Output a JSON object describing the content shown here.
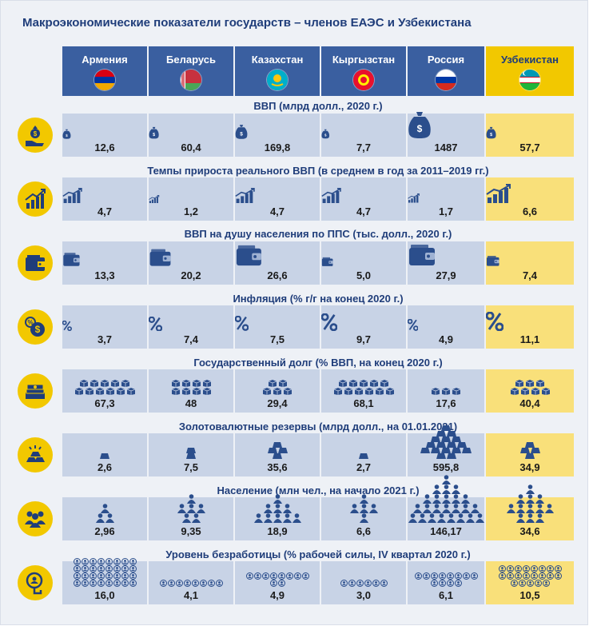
{
  "title": "Макроэкономические показатели государств – членов ЕАЭС и Узбекистана",
  "countries": [
    {
      "name": "Армения",
      "flag": [
        "#d90012",
        "#0033a0",
        "#f2a800"
      ]
    },
    {
      "name": "Беларусь",
      "flag": [
        "#c8313e",
        "#4aa657",
        "#ffffff"
      ]
    },
    {
      "name": "Казахстан",
      "flag": [
        "#00afca",
        "#fec50c"
      ]
    },
    {
      "name": "Кыргызстан",
      "flag": [
        "#e8112d",
        "#ffef00"
      ]
    },
    {
      "name": "Россия",
      "flag": [
        "#ffffff",
        "#0039a6",
        "#d52b1e"
      ]
    },
    {
      "name": "Узбекистан",
      "flag": [
        "#1eb53a",
        "#0099b5",
        "#ffffff"
      ]
    }
  ],
  "colors": {
    "accent": "#f2c800",
    "header": "#3a5fa0",
    "cell": "#c8d3e6",
    "highlight": "#f9e07a",
    "text": "#1f3d7a"
  },
  "sections": [
    {
      "title": "ВВП (млрд долл., 2020 г.)",
      "icon": "money-hand-icon",
      "glyph": "money-bag",
      "values": [
        "12,6",
        "60,4",
        "169,8",
        "7,7",
        "1487",
        "57,7"
      ],
      "numbers": [
        12.6,
        60.4,
        169.8,
        7.7,
        1487,
        57.7
      ]
    },
    {
      "title": "Темпы прироста реального ВВП (в среднем в год за 2011–2019 гг.)",
      "icon": "growth-chart-icon",
      "glyph": "growth",
      "values": [
        "4,7",
        "1,2",
        "4,7",
        "4,7",
        "1,7",
        "6,6"
      ],
      "numbers": [
        4.7,
        1.2,
        4.7,
        4.7,
        1.7,
        6.6
      ]
    },
    {
      "title": "ВВП на душу населения по ППС (тыс. долл., 2020 г.)",
      "icon": "wallet-icon",
      "glyph": "wallet",
      "values": [
        "13,3",
        "20,2",
        "26,6",
        "5,0",
        "27,9",
        "7,4"
      ],
      "numbers": [
        13.3,
        20.2,
        26.6,
        5.0,
        27.9,
        7.4
      ]
    },
    {
      "title": "Инфляция (% г/г на конец 2020 г.)",
      "icon": "percent-coin-icon",
      "glyph": "percent",
      "values": [
        "3,7",
        "7,4",
        "7,5",
        "9,7",
        "4,9",
        "11,1"
      ],
      "numbers": [
        3.7,
        7.4,
        7.5,
        9.7,
        4.9,
        11.1
      ]
    },
    {
      "title": "Государственный долг (% ВВП, на конец 2020 г.)",
      "icon": "cash-stack-icon",
      "glyph": "boxes",
      "values": [
        "67,3",
        "48",
        "29,4",
        "68,1",
        "17,6",
        "40,4"
      ],
      "numbers": [
        67.3,
        48,
        29.4,
        68.1,
        17.6,
        40.4
      ]
    },
    {
      "title": "Золотовалютные резервы (млрд долл., на 01.01.2021)",
      "icon": "gold-bars-icon",
      "glyph": "gold",
      "values": [
        "2,6",
        "7,5",
        "35,6",
        "2,7",
        "595,8",
        "34,9"
      ],
      "numbers": [
        2.6,
        7.5,
        35.6,
        2.7,
        595.8,
        34.9
      ]
    },
    {
      "title": "Население (млн чел., на начало 2021 г.)",
      "icon": "people-icon",
      "glyph": "people",
      "values": [
        "2,96",
        "9,35",
        "18,9",
        "6,6",
        "146,17",
        "34,6"
      ],
      "numbers": [
        2.96,
        9.35,
        18.9,
        6.6,
        146.17,
        34.6
      ]
    },
    {
      "title": "Уровень безработицы (% рабочей силы, IV квартал 2020 г.)",
      "icon": "job-search-icon",
      "glyph": "unemployed",
      "values": [
        "16,0",
        "4,1",
        "4,9",
        "3,0",
        "6,1",
        "10,5"
      ],
      "numbers": [
        16.0,
        4.1,
        4.9,
        3.0,
        6.1,
        10.5
      ]
    }
  ]
}
